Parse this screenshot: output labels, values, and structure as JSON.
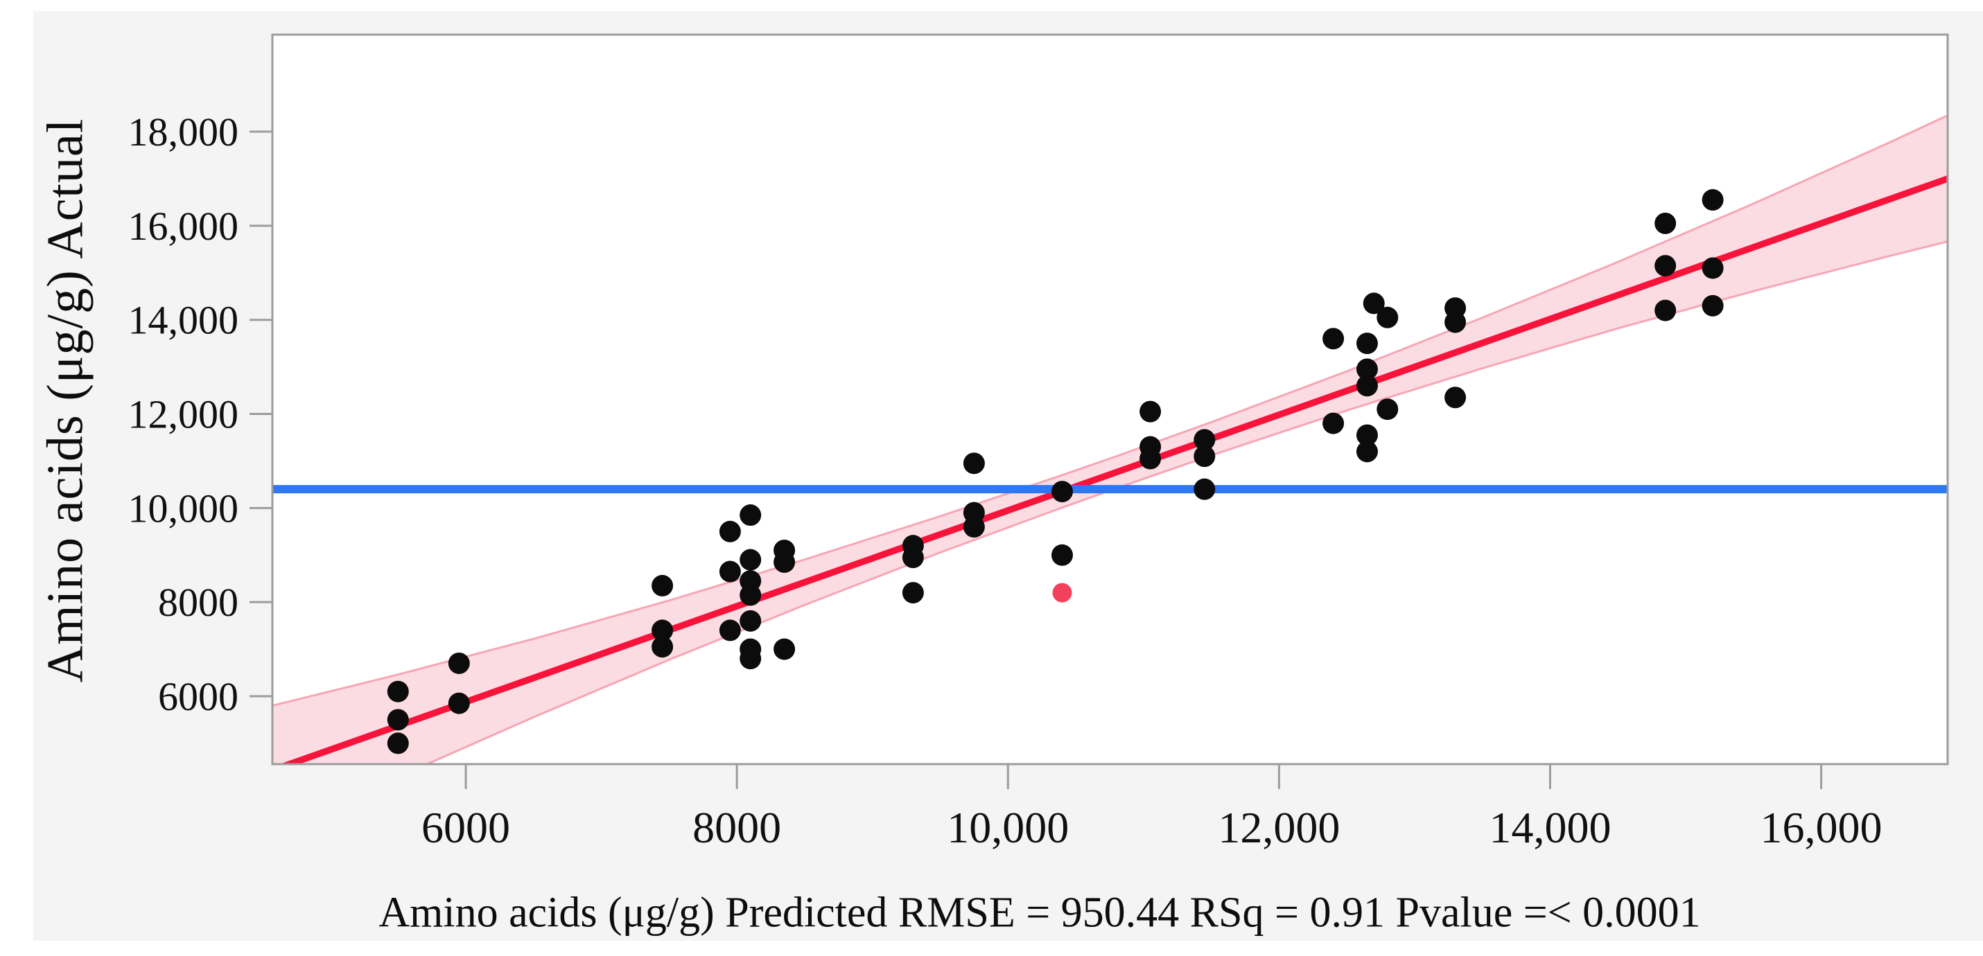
{
  "figure": {
    "background": "#f4f4f4",
    "plot_background": "#ffffff",
    "frame_color": "#9c9c9c",
    "tick_color": "#9c9c9c"
  },
  "chart_data": {
    "type": "scatter",
    "title": "",
    "ylabel": "Amino acids (μg/g) Actual",
    "xlabel": "Amino acids (μg/g) Predicted",
    "caption": "Amino acids (μg/g) Predicted RMSE = 950.44 RSq = 0.91 Pvalue =< 0.0001",
    "stats": {
      "rmse": "950.44",
      "rsq": "0.91",
      "pvalue": "=< 0.0001"
    },
    "grid": false,
    "legend_position": "none",
    "x_range": [
      4573,
      16933
    ],
    "y_range": [
      4557,
      20062
    ],
    "x_ticks": {
      "values": [
        6000,
        8000,
        10000,
        12000,
        14000,
        16000
      ],
      "labels": [
        "6000",
        "8000",
        "10,000",
        "12,000",
        "14,000",
        "16,000"
      ]
    },
    "y_ticks": {
      "values": [
        6000,
        8000,
        10000,
        12000,
        14000,
        16000,
        18000
      ],
      "labels": [
        "6000",
        "8000",
        "10,000",
        "12,000",
        "14,000",
        "16,000",
        "18,000"
      ]
    },
    "mean_line": {
      "value": 10400,
      "color": "#2e78f2",
      "width": 12
    },
    "fit_line": {
      "x": [
        4573,
        16933
      ],
      "y": [
        4428,
        17000
      ],
      "color": "#f7133a",
      "width": 9.5
    },
    "confidence_band": {
      "fill": "#fcdce3",
      "edge_color": "#f7a6b4",
      "edge_width": 3,
      "x": [
        4573,
        5500,
        6500,
        7500,
        8500,
        9500,
        10400,
        10800,
        11500,
        12500,
        13500,
        14500,
        15500,
        16500,
        16933
      ],
      "upper": [
        5800,
        6460,
        7220,
        8035,
        8905,
        9825,
        10700,
        11100,
        11825,
        12905,
        14045,
        15230,
        16470,
        17765,
        18345
      ],
      "lower": [
        3050,
        4285,
        5555,
        6775,
        7940,
        9055,
        10010,
        10420,
        11120,
        12075,
        12970,
        13820,
        14610,
        15355,
        15665
      ]
    },
    "series": [
      {
        "name": "observations",
        "color": "#0c0c0c",
        "marker_radius": 15.5,
        "points": [
          [
            5500,
            6100
          ],
          [
            5500,
            5500
          ],
          [
            5500,
            5000
          ],
          [
            5950,
            6700
          ],
          [
            5950,
            5850
          ],
          [
            7450,
            8350
          ],
          [
            7450,
            7400
          ],
          [
            7450,
            7050
          ],
          [
            7950,
            9500
          ],
          [
            7950,
            8650
          ],
          [
            7950,
            7400
          ],
          [
            8100,
            9850
          ],
          [
            8100,
            8900
          ],
          [
            8100,
            8450
          ],
          [
            8100,
            8150
          ],
          [
            8100,
            7600
          ],
          [
            8100,
            7000
          ],
          [
            8100,
            6800
          ],
          [
            8350,
            9100
          ],
          [
            8350,
            8850
          ],
          [
            8350,
            7000
          ],
          [
            9300,
            9200
          ],
          [
            9300,
            8950
          ],
          [
            9300,
            8200
          ],
          [
            9750,
            10950
          ],
          [
            9750,
            9900
          ],
          [
            9750,
            9600
          ],
          [
            10400,
            10350
          ],
          [
            10400,
            9000
          ],
          [
            11050,
            12050
          ],
          [
            11050,
            11300
          ],
          [
            11050,
            11050
          ],
          [
            11450,
            11450
          ],
          [
            11450,
            11100
          ],
          [
            11450,
            10400
          ],
          [
            12400,
            13600
          ],
          [
            12400,
            11800
          ],
          [
            12650,
            13500
          ],
          [
            12650,
            12950
          ],
          [
            12650,
            12600
          ],
          [
            12650,
            11550
          ],
          [
            12650,
            11200
          ],
          [
            12700,
            14350
          ],
          [
            12800,
            14050
          ],
          [
            12800,
            12100
          ],
          [
            13300,
            14250
          ],
          [
            13300,
            13950
          ],
          [
            13300,
            12350
          ],
          [
            14850,
            16050
          ],
          [
            14850,
            15150
          ],
          [
            14850,
            14200
          ],
          [
            15200,
            16550
          ],
          [
            15200,
            15100
          ],
          [
            15200,
            14300
          ]
        ]
      },
      {
        "name": "flagged-point",
        "color": "#f4415b",
        "marker_radius": 14,
        "points": [
          [
            10400,
            8200
          ]
        ]
      }
    ]
  }
}
